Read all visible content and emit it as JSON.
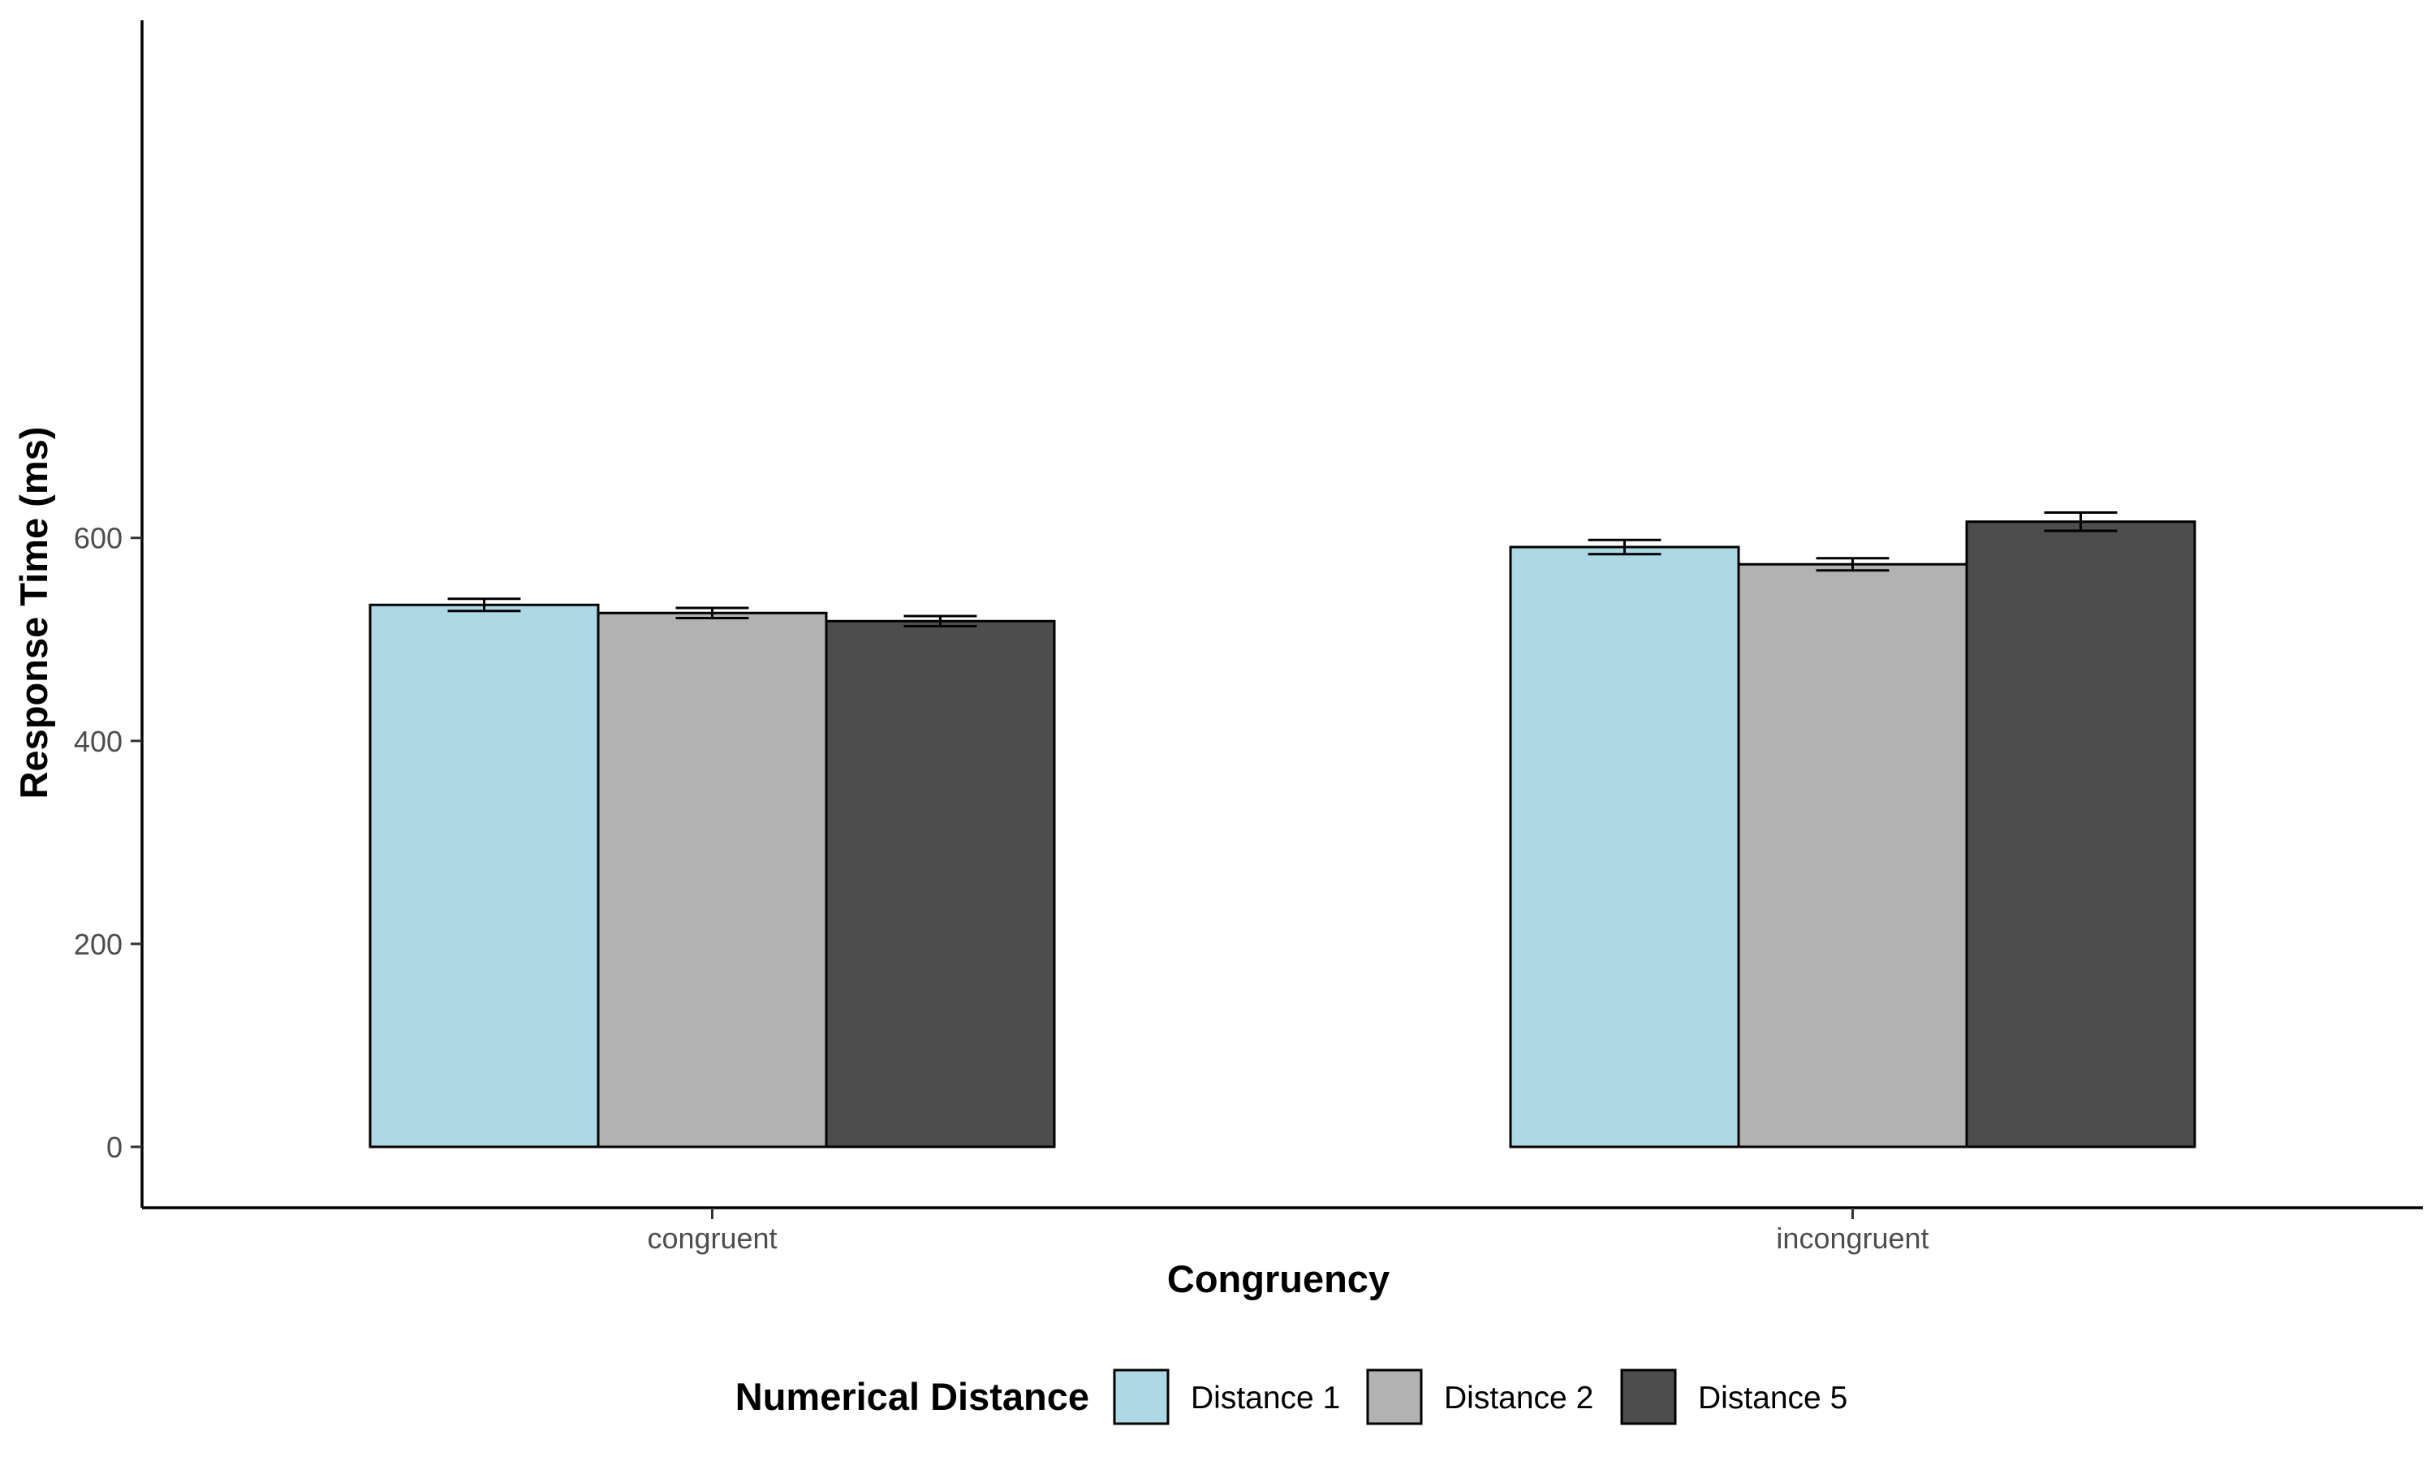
{
  "chart_data": {
    "type": "bar",
    "xlabel": "Congruency",
    "ylabel": "Response Time (ms)",
    "categories": [
      "congruent",
      "incongruent"
    ],
    "ylim": [
      -60,
      1110
    ],
    "yticks": [
      0,
      200,
      400,
      600
    ],
    "grid": false,
    "legend_position": "bottom",
    "legend_title": "Numerical Distance",
    "series": [
      {
        "name": "Distance 1",
        "color": "#add8e6",
        "values": [
          534,
          591
        ],
        "errors": [
          6,
          7
        ]
      },
      {
        "name": "Distance 2",
        "color": "#b2b2b2",
        "values": [
          526,
          574
        ],
        "errors": [
          5,
          6
        ]
      },
      {
        "name": "Distance 5",
        "color": "#4d4d4d",
        "values": [
          518,
          616
        ],
        "errors": [
          5,
          9
        ]
      }
    ]
  }
}
